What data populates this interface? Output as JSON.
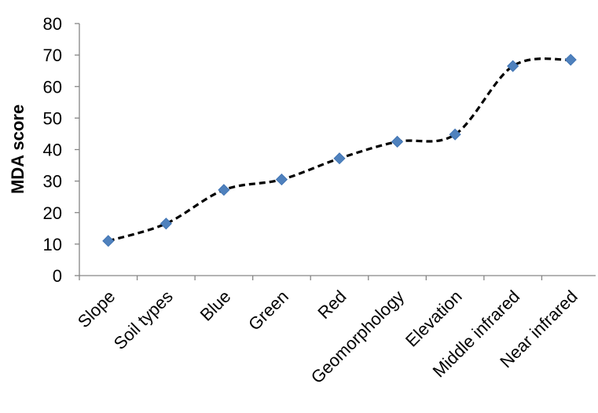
{
  "chart_data": {
    "type": "line",
    "title": "",
    "xlabel": "",
    "ylabel": "MDA score",
    "ylim": [
      0,
      80
    ],
    "yticks": [
      0,
      10,
      20,
      30,
      40,
      50,
      60,
      70,
      80
    ],
    "grid": false,
    "legend": "none",
    "line_style": "dashed, smoothed",
    "line_color": "#000000",
    "marker": "diamond",
    "marker_color": "#4F81BD",
    "categories": [
      "Slope",
      "Soil types",
      "Blue",
      "Green",
      "Red",
      "Geomorphology",
      "Elevation",
      "Middle infrared",
      "Near infrared"
    ],
    "values": [
      11,
      16.5,
      27.2,
      30.5,
      37.2,
      42.5,
      44.8,
      66.5,
      68.5
    ]
  }
}
